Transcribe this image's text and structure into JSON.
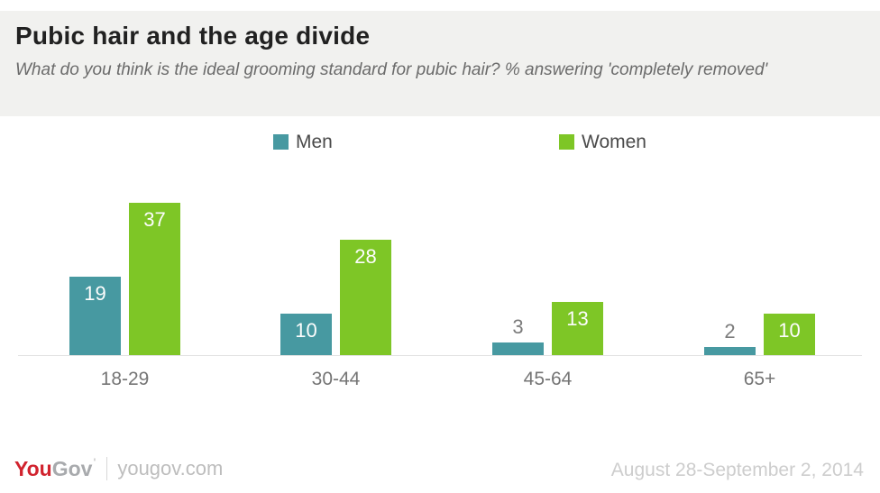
{
  "header": {
    "title": "Pubic hair and the age divide",
    "subtitle": "What do you think is the ideal grooming standard for pubic hair? % answering 'completely removed'"
  },
  "chart_data": {
    "type": "bar",
    "title": "Pubic hair and the age divide",
    "subtitle": "What do you think is the ideal grooming standard for pubic hair? % answering 'completely removed'",
    "categories": [
      "18-29",
      "30-44",
      "45-64",
      "65+"
    ],
    "series": [
      {
        "name": "Men",
        "color": "#4799a1",
        "values": [
          19,
          10,
          3,
          2
        ]
      },
      {
        "name": "Women",
        "color": "#7ec626",
        "values": [
          37,
          28,
          13,
          10
        ]
      }
    ],
    "xlabel": "",
    "ylabel": "",
    "ylim": [
      0,
      47
    ],
    "grid": false,
    "legend_position": "top",
    "value_labels": true
  },
  "footer": {
    "logo": {
      "you": "You",
      "gov": "Gov",
      "mark": "'"
    },
    "site": "yougov.com",
    "date_range": "August 28-September 2, 2014"
  },
  "colors": {
    "men": "#4799a1",
    "women": "#7ec626",
    "header_bg": "#f1f1ef",
    "logo_red": "#d1232e",
    "axis_line": "#e2e2e2"
  }
}
